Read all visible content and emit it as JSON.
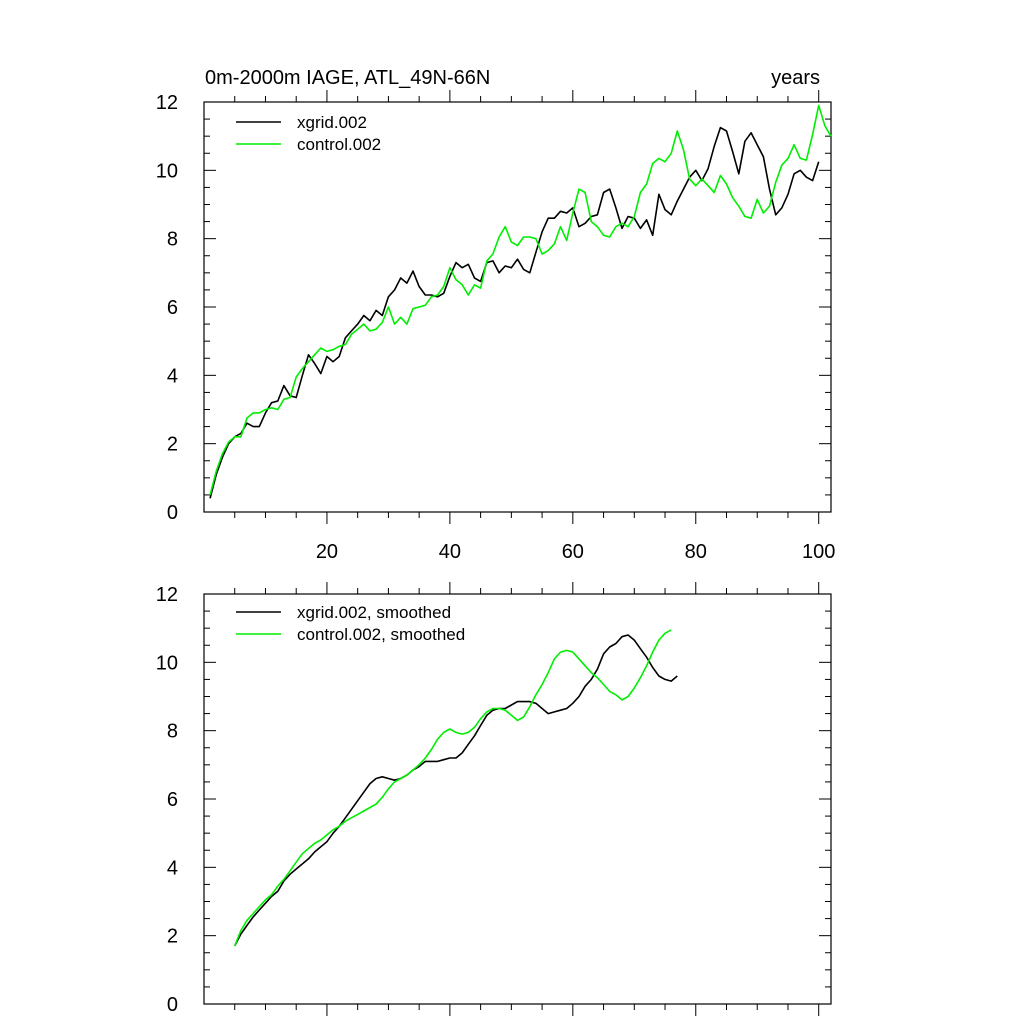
{
  "figure": {
    "title_left": "0m-2000m IAGE, ATL_49N-66N",
    "title_right": "years"
  },
  "chart_data": [
    {
      "type": "line",
      "panel": "top",
      "title": "0m-2000m IAGE, ATL_49N-66N",
      "units_label": "years",
      "xlim": [
        0,
        102
      ],
      "ylim": [
        0,
        12
      ],
      "xticks": [
        20,
        40,
        60,
        80,
        100
      ],
      "yticks": [
        0,
        2,
        4,
        6,
        8,
        10,
        12
      ],
      "xtick_labels": [
        "20",
        "40",
        "60",
        "80",
        "100"
      ],
      "ytick_labels": [
        "0",
        "2",
        "4",
        "6",
        "8",
        "10",
        "12"
      ],
      "legend": [
        "xgrid.002",
        "control.002"
      ],
      "legend_position": "top-left",
      "series": [
        {
          "name": "xgrid.002",
          "color": "#000000",
          "x_start": 1,
          "values": [
            0.4,
            1.1,
            1.6,
            2.0,
            2.2,
            2.3,
            2.6,
            2.5,
            2.5,
            2.9,
            3.2,
            3.25,
            3.7,
            3.4,
            3.35,
            4.0,
            4.6,
            4.35,
            4.05,
            4.55,
            4.4,
            4.55,
            5.1,
            5.3,
            5.5,
            5.75,
            5.6,
            5.9,
            5.75,
            6.3,
            6.5,
            6.85,
            6.7,
            7.05,
            6.6,
            6.35,
            6.35,
            6.3,
            6.4,
            6.9,
            7.3,
            7.15,
            7.25,
            6.85,
            6.75,
            7.3,
            7.35,
            7.0,
            7.2,
            7.15,
            7.4,
            7.1,
            7.0,
            7.6,
            8.2,
            8.6,
            8.6,
            8.8,
            8.75,
            8.9,
            8.35,
            8.45,
            8.65,
            8.7,
            9.35,
            9.45,
            8.9,
            8.3,
            8.65,
            8.6,
            8.3,
            8.55,
            8.1,
            9.3,
            8.85,
            8.7,
            9.1,
            9.45,
            9.8,
            10.0,
            9.7,
            10.05,
            10.7,
            11.25,
            11.15,
            10.55,
            9.9,
            10.85,
            11.1,
            10.75,
            10.4,
            9.45,
            8.7,
            8.9,
            9.3,
            9.9,
            10.0,
            9.8,
            9.7,
            10.25
          ]
        },
        {
          "name": "control.002",
          "color": "#00ee00",
          "x_start": 1,
          "values": [
            0.5,
            1.2,
            1.7,
            2.05,
            2.2,
            2.2,
            2.75,
            2.9,
            2.9,
            3.0,
            3.05,
            3.0,
            3.3,
            3.35,
            3.95,
            4.2,
            4.4,
            4.6,
            4.8,
            4.7,
            4.75,
            4.85,
            4.9,
            5.2,
            5.35,
            5.5,
            5.3,
            5.35,
            5.55,
            6.0,
            5.5,
            5.7,
            5.5,
            5.95,
            6.0,
            6.05,
            6.3,
            6.35,
            6.6,
            7.15,
            6.8,
            6.65,
            6.35,
            6.65,
            6.55,
            7.35,
            7.55,
            8.05,
            8.35,
            7.9,
            7.8,
            8.05,
            8.05,
            8.0,
            7.55,
            7.65,
            7.85,
            8.35,
            7.95,
            8.75,
            9.45,
            9.35,
            8.5,
            8.35,
            8.1,
            8.05,
            8.35,
            8.45,
            8.35,
            8.65,
            9.35,
            9.6,
            10.2,
            10.35,
            10.25,
            10.5,
            11.15,
            10.6,
            9.75,
            9.55,
            9.75,
            9.55,
            9.35,
            9.85,
            9.6,
            9.2,
            8.95,
            8.65,
            8.6,
            9.15,
            8.75,
            8.95,
            9.65,
            10.15,
            10.35,
            10.75,
            10.35,
            10.3,
            11.05,
            11.9,
            11.3,
            11.0
          ]
        }
      ]
    },
    {
      "type": "line",
      "panel": "bottom",
      "xlim": [
        0,
        102
      ],
      "ylim": [
        0,
        12
      ],
      "yticks": [
        0,
        2,
        4,
        6,
        8,
        10,
        12
      ],
      "ytick_labels": [
        "0",
        "2",
        "4",
        "6",
        "8",
        "10",
        "12"
      ],
      "legend": [
        "xgrid.002, smoothed",
        "control.002, smoothed"
      ],
      "legend_position": "top-left",
      "series": [
        {
          "name": "xgrid.002, smoothed",
          "color": "#000000",
          "x_start": 5,
          "values": [
            1.7,
            2.05,
            2.3,
            2.55,
            2.75,
            2.95,
            3.15,
            3.3,
            3.6,
            3.8,
            3.95,
            4.1,
            4.25,
            4.45,
            4.6,
            4.75,
            5.0,
            5.2,
            5.45,
            5.7,
            5.95,
            6.2,
            6.45,
            6.6,
            6.65,
            6.6,
            6.55,
            6.6,
            6.7,
            6.85,
            6.95,
            7.1,
            7.1,
            7.1,
            7.15,
            7.2,
            7.2,
            7.35,
            7.6,
            7.85,
            8.15,
            8.45,
            8.6,
            8.65,
            8.65,
            8.75,
            8.85,
            8.85,
            8.85,
            8.8,
            8.65,
            8.5,
            8.55,
            8.6,
            8.65,
            8.8,
            9.0,
            9.3,
            9.5,
            9.8,
            10.25,
            10.45,
            10.55,
            10.75,
            10.8,
            10.65,
            10.4,
            10.15,
            9.85,
            9.6,
            9.5,
            9.45,
            9.6
          ]
        },
        {
          "name": "control.002, smoothed",
          "color": "#00ee00",
          "x_start": 5,
          "values": [
            1.7,
            2.15,
            2.45,
            2.65,
            2.85,
            3.05,
            3.2,
            3.45,
            3.65,
            3.9,
            4.15,
            4.4,
            4.55,
            4.7,
            4.8,
            4.95,
            5.1,
            5.2,
            5.35,
            5.45,
            5.55,
            5.65,
            5.75,
            5.85,
            6.05,
            6.3,
            6.5,
            6.6,
            6.7,
            6.85,
            7.0,
            7.2,
            7.45,
            7.75,
            7.95,
            8.05,
            7.95,
            7.9,
            7.95,
            8.1,
            8.35,
            8.55,
            8.65,
            8.65,
            8.6,
            8.45,
            8.3,
            8.4,
            8.7,
            9.05,
            9.35,
            9.7,
            10.1,
            10.3,
            10.35,
            10.3,
            10.1,
            9.9,
            9.7,
            9.55,
            9.35,
            9.15,
            9.05,
            8.9,
            9.0,
            9.25,
            9.55,
            9.9,
            10.3,
            10.65,
            10.85,
            10.95
          ]
        }
      ]
    }
  ]
}
